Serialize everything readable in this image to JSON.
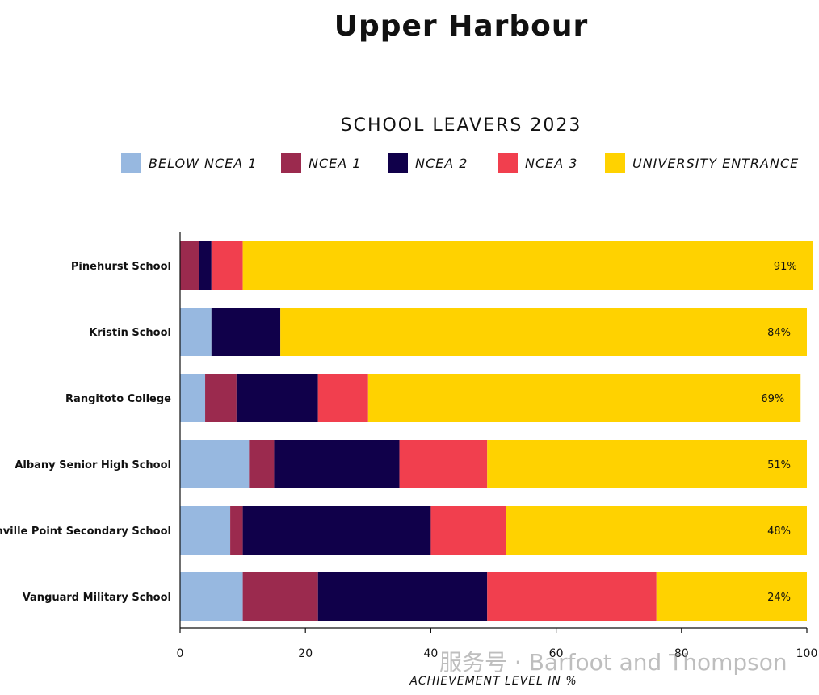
{
  "page_title": "Upper Harbour",
  "watermark": "服务号 · Barfoot and Thompson",
  "chart_data": {
    "type": "bar",
    "orientation": "horizontal",
    "stacked": true,
    "title": "SCHOOL LEAVERS 2023",
    "xlabel": "ACHIEVEMENT LEVEL IN %",
    "ylabel": "",
    "xlim": [
      0,
      100
    ],
    "xticks": [
      0,
      20,
      40,
      60,
      80,
      100
    ],
    "grid": false,
    "legend_position": "top",
    "categories": [
      "Pinehurst School",
      "Kristin School",
      "Rangitoto College",
      "Albany Senior High School",
      "Hobsonville Point Secondary School",
      "Vanguard Military School"
    ],
    "series": [
      {
        "name": "BELOW NCEA 1",
        "color": "#97b8e0",
        "values": [
          0,
          5,
          4,
          11,
          8,
          10
        ]
      },
      {
        "name": "NCEA 1",
        "color": "#9b2a4e",
        "values": [
          3,
          0,
          5,
          4,
          2,
          12
        ]
      },
      {
        "name": "NCEA 2",
        "color": "#10004a",
        "values": [
          2,
          11,
          13,
          20,
          30,
          27
        ]
      },
      {
        "name": "NCEA 3",
        "color": "#f13f4e",
        "values": [
          5,
          0,
          8,
          14,
          12,
          27
        ]
      },
      {
        "name": "UNIVERSITY ENTRANCE",
        "color": "#ffd200",
        "values": [
          91,
          84,
          69,
          51,
          48,
          24
        ]
      }
    ],
    "data_labels": [
      "91%",
      "84%",
      "69%",
      "51%",
      "48%",
      "24%"
    ]
  }
}
